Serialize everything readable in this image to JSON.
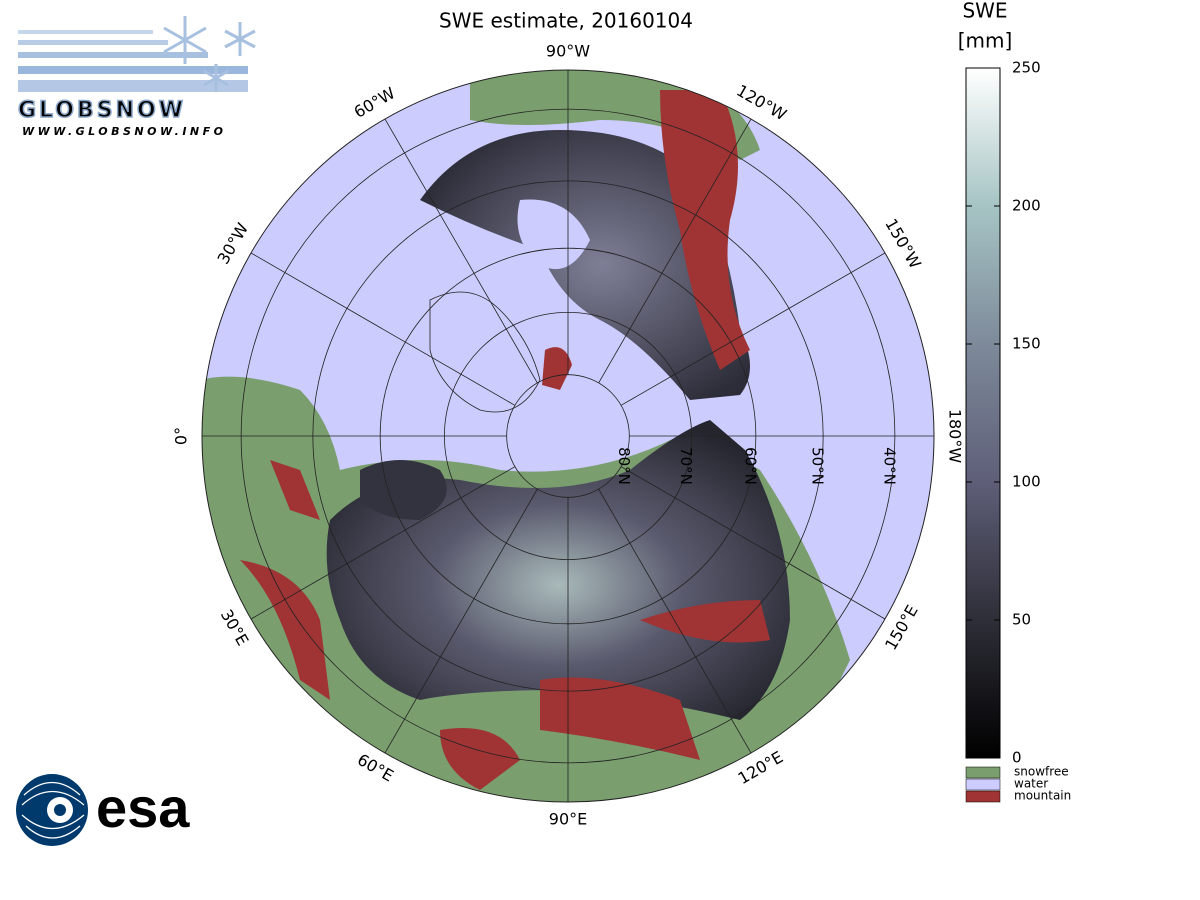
{
  "title": "SWE estimate, 20160104",
  "logo": {
    "name": "GLOBSNOW",
    "url": "WWW.GLOBSNOW.INFO"
  },
  "agency": "esa",
  "map": {
    "longitudes": [
      {
        "value": 0,
        "label": "0°"
      },
      {
        "value": -30,
        "label": "30°W"
      },
      {
        "value": -60,
        "label": "60°W"
      },
      {
        "value": -90,
        "label": "90°W"
      },
      {
        "value": -120,
        "label": "120°W"
      },
      {
        "value": -150,
        "label": "150°W"
      },
      {
        "value": -180,
        "label": "180°W"
      },
      {
        "value": 30,
        "label": "30°E"
      },
      {
        "value": 60,
        "label": "60°E"
      },
      {
        "value": 90,
        "label": "90°E"
      },
      {
        "value": 120,
        "label": "120°E"
      },
      {
        "value": 150,
        "label": "150°E"
      }
    ],
    "latitudes": [
      {
        "value": 80,
        "label": "80°N"
      },
      {
        "value": 70,
        "label": "70°N"
      },
      {
        "value": 60,
        "label": "60°N"
      },
      {
        "value": 50,
        "label": "50°N"
      },
      {
        "value": 40,
        "label": "40°N"
      }
    ]
  },
  "colorbar": {
    "title": [
      "SWE",
      "[mm]"
    ],
    "lim": [
      0,
      250
    ],
    "ticks": [
      0,
      50,
      100,
      150,
      200,
      250
    ],
    "legend": [
      {
        "label": "snowfree",
        "color": "#7a9e6e"
      },
      {
        "label": "water",
        "color": "#ccccff"
      },
      {
        "label": "mountain",
        "color": "#a03434"
      }
    ]
  }
}
